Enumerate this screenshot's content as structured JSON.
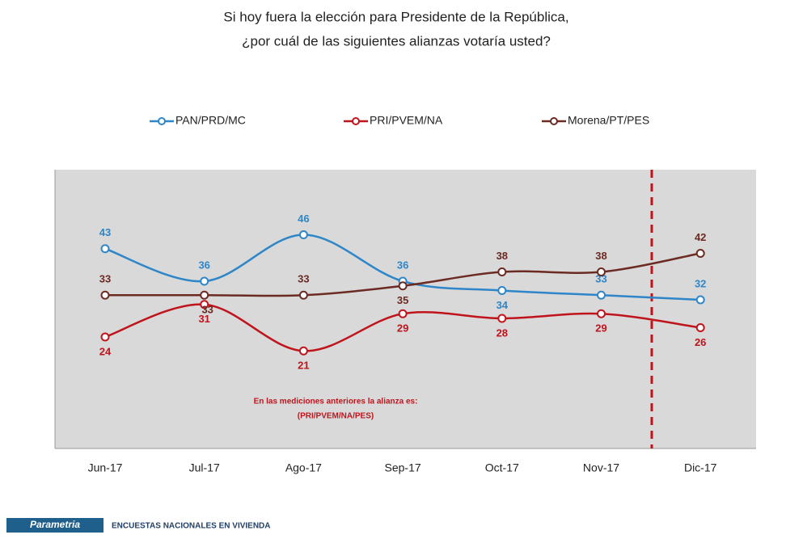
{
  "chart_data": {
    "type": "line",
    "title": "Si hoy fuera la elección para Presidente de la República,",
    "subtitle": "¿por cuál de las siguientes alianzas votaría usted?",
    "categories": [
      "Jun-17",
      "Jul-17",
      "Ago-17",
      "Sep-17",
      "Oct-17",
      "Nov-17",
      "Dic-17"
    ],
    "series": [
      {
        "name": "PAN/PRD/MC",
        "color": "#2e86c8",
        "values": [
          43,
          36,
          46,
          36,
          34,
          33,
          32
        ]
      },
      {
        "name": "PRI/PVEM/NA",
        "color": "#c0141c",
        "values": [
          24,
          31,
          21,
          29,
          28,
          29,
          26
        ]
      },
      {
        "name": "Morena/PT/PES",
        "color": "#6b2a22",
        "values": [
          33,
          33,
          33,
          35,
          38,
          38,
          42
        ]
      }
    ],
    "ylim": [
      0,
      60
    ],
    "annotations": [
      "En las mediciones anteriores la alianza es:",
      "(PRI/PVEM/NA/PES)"
    ],
    "footer": {
      "brand": "Parametria",
      "text": "ENCUESTAS NACIONALES EN VIVIENDA"
    }
  }
}
